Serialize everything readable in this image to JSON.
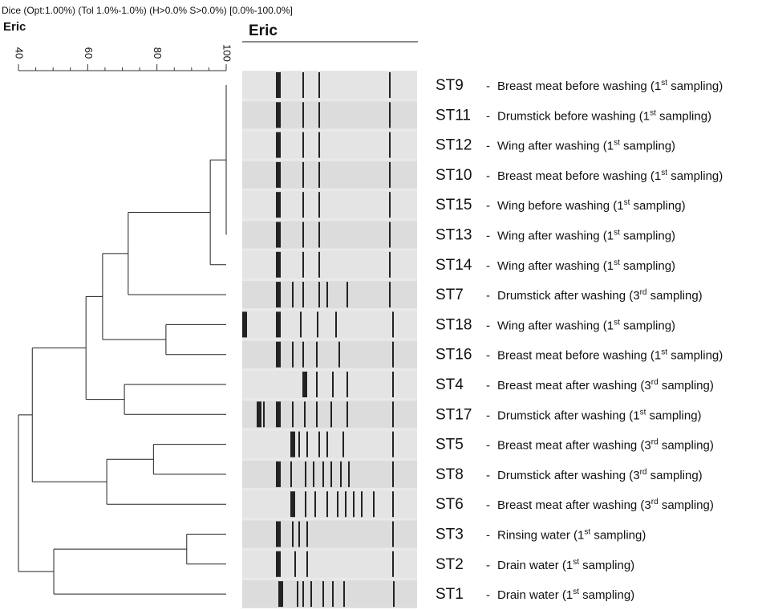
{
  "header": {
    "method": "Dice (Opt:1.00%) (Tol 1.0%-1.0%) (H>0.0% S>0.0%) [0.0%-100.0%]",
    "tree_title": "Eric",
    "gel_title": "Eric"
  },
  "scale": {
    "xlim": [
      40,
      100
    ],
    "xticks": [
      40,
      60,
      80,
      100
    ],
    "minor_ticks": [
      45,
      50,
      55,
      65,
      70,
      75,
      85,
      90,
      95
    ]
  },
  "dendrogram": {
    "similarity": 40,
    "children": [
      {
        "similarity": 44,
        "children": [
          {
            "similarity": 59.5,
            "children": [
              {
                "similarity": 64.3,
                "children": [
                  {
                    "similarity": 71.7,
                    "children": [
                      {
                        "similarity": 95.4,
                        "children": [
                          {
                            "similarity": 100,
                            "children": [
                              {
                                "id": "ST9",
                                "dash": "-",
                                "desc": "Breast meat before washing (1",
                                "sup": "st",
                                "rest": " sampling)"
                              },
                              {
                                "id": "ST11",
                                "dash": "-",
                                "desc": "Drumstick before washing (1",
                                "sup": "st",
                                "rest": " sampling)"
                              },
                              {
                                "id": "ST12",
                                "dash": "-",
                                "desc": "Wing after washing (1",
                                "sup": "st",
                                "rest": " sampling)"
                              },
                              {
                                "id": "ST10",
                                "dash": "-",
                                "desc": "Breast meat before washing (1",
                                "sup": "st",
                                "rest": " sampling)"
                              },
                              {
                                "id": "ST15",
                                "dash": "-",
                                "desc": "Wing before washing (1",
                                "sup": "st",
                                "rest": " sampling)"
                              },
                              {
                                "id": "ST13",
                                "dash": "-",
                                "desc": "Wing after washing (1",
                                "sup": "st",
                                "rest": " sampling)"
                              }
                            ]
                          },
                          {
                            "id": "ST14",
                            "dash": "-",
                            "desc": "Wing after washing (1",
                            "sup": "st",
                            "rest": " sampling)"
                          }
                        ]
                      },
                      {
                        "id": "ST7",
                        "dash": "-",
                        "desc": "Drumstick after washing (3",
                        "sup": "rd",
                        "rest": " sampling)"
                      }
                    ]
                  },
                  {
                    "similarity": 82.6,
                    "children": [
                      {
                        "id": "ST18",
                        "dash": "-",
                        "desc": "Wing after washing (1",
                        "sup": "st",
                        "rest": " sampling)"
                      },
                      {
                        "id": "ST16",
                        "dash": "-",
                        "desc": "Breast meat before washing (1",
                        "sup": "st",
                        "rest": " sampling)"
                      }
                    ]
                  }
                ]
              },
              {
                "similarity": 70.6,
                "children": [
                  {
                    "id": "ST4",
                    "dash": "-",
                    "desc": "Breast meat after washing (3",
                    "sup": "rd",
                    "rest": " sampling)"
                  },
                  {
                    "id": "ST17",
                    "dash": "-",
                    "desc": "Drumstick after washing (1",
                    "sup": "st",
                    "rest": " sampling)"
                  }
                ]
              }
            ]
          },
          {
            "similarity": 65.5,
            "children": [
              {
                "similarity": 79,
                "children": [
                  {
                    "id": "ST5",
                    "dash": "-",
                    "desc": "Breast meat after washing (3",
                    "sup": "rd",
                    "rest": " sampling)"
                  },
                  {
                    "id": "ST8",
                    "dash": "-",
                    "desc": "Drumstick after washing (3",
                    "sup": "rd",
                    "rest": " sampling)"
                  }
                ]
              },
              {
                "id": "ST6",
                "dash": "-",
                "desc": "Breast meat after washing (3",
                "sup": "rd",
                "rest": " sampling)"
              }
            ]
          }
        ]
      },
      {
        "similarity": 50.2,
        "children": [
          {
            "similarity": 88.6,
            "children": [
              {
                "id": "ST3",
                "dash": "-",
                "desc": "Rinsing water (1",
                "sup": "st",
                "rest": " sampling)"
              },
              {
                "id": "ST2",
                "dash": "-",
                "desc": "Drain water (1",
                "sup": "st",
                "rest": " sampling)"
              }
            ]
          },
          {
            "id": "ST1",
            "dash": "-",
            "desc": "Drain water (1",
            "sup": "st",
            "rest": " sampling)"
          }
        ]
      }
    ]
  }
}
